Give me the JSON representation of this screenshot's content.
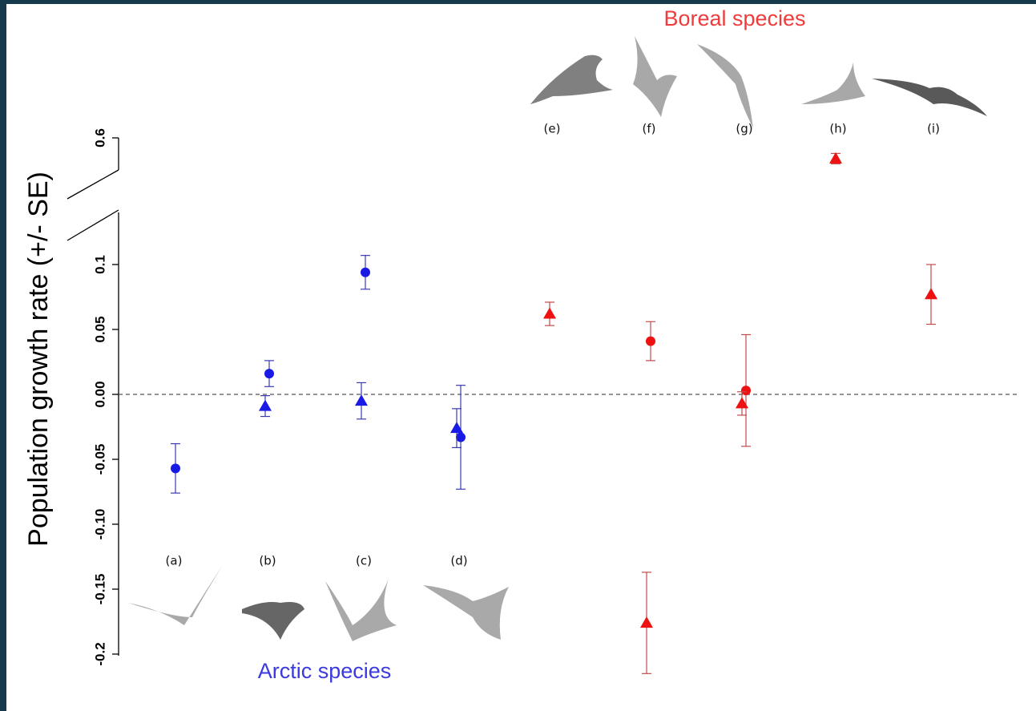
{
  "chart_data": {
    "type": "scatter",
    "y_label": "Population growth rate (+/- SE)",
    "categories": [
      "(a)",
      "(b)",
      "(c)",
      "(d)",
      "(e)",
      "(f)",
      "(g)",
      "(h)",
      "(i)"
    ],
    "category_colors": [
      "#1a1ae6",
      "#1a1ae6",
      "#1a1ae6",
      "#1a1ae6",
      "#ee1111",
      "#ee1111",
      "#ee1111",
      "#ee1111",
      "#ee1111"
    ],
    "error_colors": [
      "#3b3bb0",
      "#3b3bb0",
      "#3b3bb0",
      "#3b3bb0",
      "#c24a4a",
      "#c24a4a",
      "#c24a4a",
      "#c24a4a",
      "#c24a4a"
    ],
    "series": [
      {
        "marker": "circle",
        "values": [
          -0.057,
          0.016,
          0.094,
          -0.033,
          null,
          0.041,
          0.003,
          null,
          null
        ],
        "errors": [
          0.019,
          0.01,
          0.013,
          0.04,
          null,
          0.015,
          0.043,
          null,
          null
        ]
      },
      {
        "marker": "triangle",
        "values": [
          null,
          -0.009,
          -0.005,
          -0.026,
          0.062,
          -0.176,
          -0.007,
          0.584,
          0.077
        ],
        "errors": [
          null,
          0.008,
          0.014,
          0.015,
          0.009,
          0.039,
          0.009,
          0.004,
          0.023
        ]
      }
    ],
    "ylim": [
      -0.2,
      0.6
    ],
    "y_break": [
      0.14,
      0.57
    ],
    "yticks": [
      0.6,
      0.1,
      0.05,
      {
        "value": 0,
        "label": "0.00"
      },
      -0.05,
      {
        "value": -0.1,
        "label": "-0.10"
      },
      -0.15,
      -0.2
    ],
    "zero_line": true,
    "annotations": [
      {
        "text": "Arctic species",
        "color": "#3a3ae0"
      },
      {
        "text": "Boreal species",
        "color": "#ee3b3b"
      }
    ]
  }
}
